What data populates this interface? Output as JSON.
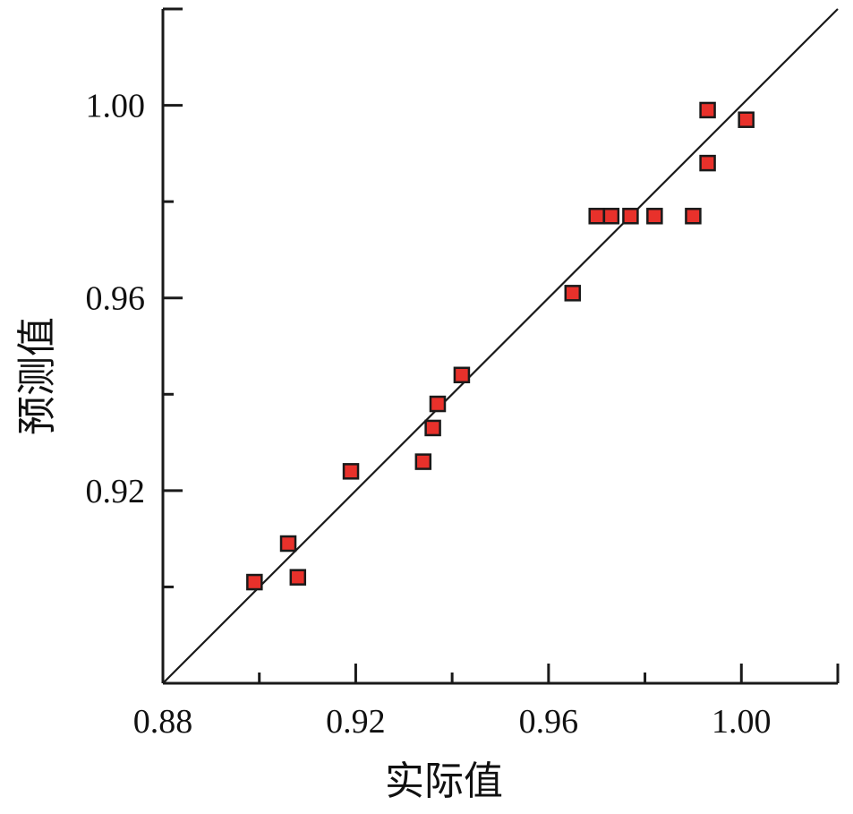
{
  "chart_data": {
    "type": "scatter",
    "title": "",
    "xlabel": "实际值",
    "ylabel": "预测值",
    "xlim": [
      0.88,
      1.02
    ],
    "ylim": [
      0.88,
      1.02
    ],
    "x_ticks": [
      0.88,
      0.92,
      0.96,
      1.0
    ],
    "x_tick_labels": [
      "0.88",
      "0.92",
      "0.96",
      "1.00"
    ],
    "y_ticks": [
      0.92,
      0.96,
      1.0
    ],
    "y_tick_labels": [
      "0.92",
      "0.96",
      "1.00"
    ],
    "grid": false,
    "marker": "square",
    "marker_color": "#e8312b",
    "marker_edge_color": "#1a1a1a",
    "line_color": "#1a1a1a",
    "reference_line": {
      "from": [
        0.88,
        0.88
      ],
      "to": [
        1.02,
        1.02
      ]
    },
    "series": [
      {
        "points": [
          {
            "x": 0.899,
            "y": 0.901
          },
          {
            "x": 0.906,
            "y": 0.909
          },
          {
            "x": 0.908,
            "y": 0.902
          },
          {
            "x": 0.919,
            "y": 0.924
          },
          {
            "x": 0.934,
            "y": 0.926
          },
          {
            "x": 0.936,
            "y": 0.933
          },
          {
            "x": 0.937,
            "y": 0.938
          },
          {
            "x": 0.942,
            "y": 0.944
          },
          {
            "x": 0.965,
            "y": 0.961
          },
          {
            "x": 0.97,
            "y": 0.977
          },
          {
            "x": 0.973,
            "y": 0.977
          },
          {
            "x": 0.977,
            "y": 0.977
          },
          {
            "x": 0.982,
            "y": 0.977
          },
          {
            "x": 0.99,
            "y": 0.977
          },
          {
            "x": 0.993,
            "y": 0.988
          },
          {
            "x": 0.993,
            "y": 0.999
          },
          {
            "x": 1.001,
            "y": 0.997
          }
        ]
      }
    ]
  }
}
